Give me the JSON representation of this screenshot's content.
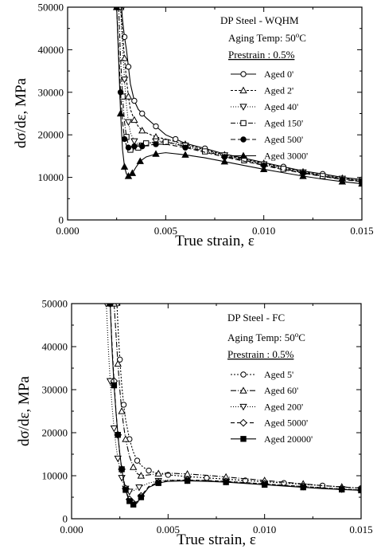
{
  "figure": {
    "background": "#ffffff",
    "ink": "#000000"
  },
  "chart_data": [
    {
      "type": "line",
      "title": "DP Steel - WQHM",
      "aging_temp_label": "Aging Temp: 50",
      "aging_temp_suffix": "C",
      "aging_temp_sup": "o",
      "prestrain_label": "Prestrain : 0.5%",
      "xlabel": "True strain, ε",
      "ylabel": "dσ/dε, MPa",
      "xlim": [
        0.0,
        0.015
      ],
      "ylim": [
        0,
        50000
      ],
      "x_ticks": [
        0.0,
        0.005,
        0.01,
        0.015
      ],
      "x_tick_labels": [
        "0.000",
        "0.005",
        "0.010",
        "0.015"
      ],
      "y_ticks": [
        0,
        10000,
        20000,
        30000,
        40000,
        50000
      ],
      "y_tick_labels": [
        "0",
        "10000",
        "20000",
        "30000",
        "40000",
        "50000"
      ],
      "grid": false,
      "legend_position": "top-right",
      "series": [
        {
          "name": "Aged 0'",
          "marker": "circle-open",
          "dash": "",
          "x": [
            0.00275,
            0.0028,
            0.0029,
            0.003,
            0.0031,
            0.0032,
            0.0034,
            0.0036,
            0.0038,
            0.004,
            0.0045,
            0.005,
            0.0055,
            0.006,
            0.007,
            0.008,
            0.009,
            0.01,
            0.011,
            0.012,
            0.013,
            0.014,
            0.015
          ],
          "y": [
            50000,
            47000,
            43000,
            40000,
            36000,
            32000,
            28000,
            26000,
            25000,
            24000,
            22000,
            20000,
            19000,
            18000,
            16800,
            15500,
            14500,
            13500,
            12500,
            11500,
            10800,
            10000,
            9500
          ]
        },
        {
          "name": "Aged 2'",
          "marker": "triangle-up-open",
          "dash": "3 2",
          "x": [
            0.0027,
            0.0028,
            0.0029,
            0.003,
            0.0031,
            0.0032,
            0.0034,
            0.0036,
            0.0038,
            0.004,
            0.0045,
            0.005,
            0.006,
            0.007,
            0.008,
            0.009,
            0.01,
            0.011,
            0.012,
            0.013,
            0.014,
            0.015
          ],
          "y": [
            50000,
            44000,
            38000,
            33000,
            29000,
            26000,
            23500,
            22000,
            21000,
            20500,
            19500,
            19000,
            17800,
            16500,
            15300,
            14300,
            13300,
            12300,
            11300,
            10500,
            9800,
            9200
          ]
        },
        {
          "name": "Aged 40'",
          "marker": "triangle-down-open",
          "dash": "1 2",
          "x": [
            0.0027,
            0.0028,
            0.0029,
            0.003,
            0.0031,
            0.0032,
            0.0034,
            0.0036,
            0.0038,
            0.004,
            0.0045,
            0.005,
            0.006,
            0.007,
            0.008,
            0.009,
            0.01,
            0.011,
            0.012,
            0.013,
            0.014,
            0.015
          ],
          "y": [
            50000,
            41000,
            33000,
            27000,
            23000,
            20500,
            18500,
            17800,
            17500,
            17800,
            18500,
            18500,
            17500,
            16300,
            15200,
            14100,
            13100,
            12100,
            11200,
            10400,
            9700,
            9100
          ]
        },
        {
          "name": "Aged 150'",
          "marker": "square-open",
          "dash": "6 2 1 2",
          "x": [
            0.0026,
            0.0027,
            0.0028,
            0.0029,
            0.003,
            0.0031,
            0.0032,
            0.0034,
            0.0036,
            0.0038,
            0.004,
            0.0045,
            0.005,
            0.006,
            0.007,
            0.008,
            0.009,
            0.01,
            0.011,
            0.012,
            0.013,
            0.014,
            0.015
          ],
          "y": [
            50000,
            38000,
            29000,
            23000,
            19500,
            17500,
            16500,
            16500,
            17000,
            17500,
            18000,
            18300,
            18300,
            17300,
            16100,
            15000,
            14000,
            13000,
            12000,
            11100,
            10300,
            9600,
            9000
          ]
        },
        {
          "name": "Aged 500'",
          "marker": "circle-filled",
          "dash": "6 3",
          "x": [
            0.0025,
            0.0026,
            0.0027,
            0.0028,
            0.0029,
            0.003,
            0.0031,
            0.0032,
            0.0034,
            0.0036,
            0.0038,
            0.004,
            0.0045,
            0.005,
            0.006,
            0.007,
            0.008,
            0.009,
            0.01,
            0.011,
            0.012,
            0.013,
            0.014,
            0.015
          ],
          "y": [
            50000,
            40000,
            30000,
            23000,
            19000,
            17500,
            17000,
            17200,
            17300,
            17300,
            17300,
            17500,
            17800,
            17800,
            17000,
            15900,
            14800,
            13800,
            12800,
            11800,
            11000,
            10200,
            9500,
            9000
          ]
        },
        {
          "name": "Aged 3000'",
          "marker": "triangle-up-filled",
          "dash": "",
          "x": [
            0.0025,
            0.0026,
            0.0027,
            0.0028,
            0.0029,
            0.003,
            0.0031,
            0.0032,
            0.0033,
            0.0035,
            0.0037,
            0.004,
            0.0045,
            0.005,
            0.006,
            0.007,
            0.008,
            0.009,
            0.01,
            0.011,
            0.012,
            0.013,
            0.014,
            0.015
          ],
          "y": [
            50000,
            38000,
            25000,
            16500,
            12500,
            10800,
            10300,
            10500,
            11000,
            12500,
            13800,
            14800,
            15500,
            15800,
            15300,
            14600,
            13700,
            12800,
            11900,
            11100,
            10300,
            9600,
            9000,
            8500
          ]
        }
      ]
    },
    {
      "type": "line",
      "title": "DP Steel - FC",
      "aging_temp_label": "Aging Temp: 50",
      "aging_temp_suffix": "C",
      "aging_temp_sup": "o",
      "prestrain_label": "Prestrain : 0.5%",
      "xlabel": "True strain, ε",
      "ylabel": "dσ/dε, MPa",
      "xlim": [
        0.0,
        0.015
      ],
      "ylim": [
        0,
        50000
      ],
      "x_ticks": [
        0.0,
        0.005,
        0.01,
        0.015
      ],
      "x_tick_labels": [
        "0.000",
        "0.005",
        "0.010",
        "0.015"
      ],
      "y_ticks": [
        0,
        10000,
        20000,
        30000,
        40000,
        50000
      ],
      "y_tick_labels": [
        "0",
        "10000",
        "20000",
        "30000",
        "40000",
        "50000"
      ],
      "grid": false,
      "legend_position": "top-right",
      "series": [
        {
          "name": "Aged 5'",
          "marker": "circle-open",
          "dash": "2 2",
          "x": [
            0.00235,
            0.0024,
            0.0025,
            0.0026,
            0.0027,
            0.0028,
            0.003,
            0.0032,
            0.0034,
            0.0037,
            0.004,
            0.0045,
            0.005,
            0.006,
            0.007,
            0.008,
            0.009,
            0.01,
            0.011,
            0.012,
            0.013,
            0.014,
            0.015
          ],
          "y": [
            50000,
            45000,
            37000,
            31000,
            26500,
            23000,
            18500,
            15500,
            13500,
            12000,
            11200,
            10500,
            10200,
            9800,
            9500,
            9200,
            8900,
            8600,
            8300,
            8000,
            7700,
            7400,
            7100
          ]
        },
        {
          "name": "Aged 60'",
          "marker": "triangle-up-open",
          "dash": "7 2 1 2",
          "x": [
            0.0022,
            0.0023,
            0.0024,
            0.0025,
            0.0026,
            0.0027,
            0.0028,
            0.003,
            0.0032,
            0.0034,
            0.0036,
            0.004,
            0.0045,
            0.005,
            0.006,
            0.007,
            0.008,
            0.009,
            0.01,
            0.011,
            0.012,
            0.013,
            0.014,
            0.015
          ],
          "y": [
            50000,
            43000,
            36000,
            30000,
            25000,
            21500,
            18500,
            14500,
            12000,
            10500,
            10000,
            10200,
            10500,
            10600,
            10400,
            10100,
            9700,
            9300,
            8900,
            8500,
            8100,
            7700,
            7400,
            7100
          ]
        },
        {
          "name": "Aged 200'",
          "marker": "triangle-down-open",
          "dash": "1 2",
          "x": [
            0.0018,
            0.0019,
            0.002,
            0.0021,
            0.0022,
            0.0023,
            0.0024,
            0.0025,
            0.0026,
            0.0027,
            0.0028,
            0.0029,
            0.003,
            0.0032,
            0.0035,
            0.004,
            0.0045,
            0.005,
            0.006,
            0.007,
            0.008,
            0.009,
            0.01,
            0.011,
            0.012,
            0.013,
            0.014,
            0.015
          ],
          "y": [
            50000,
            40000,
            32000,
            26000,
            21000,
            17000,
            14000,
            11500,
            9500,
            8000,
            7000,
            6500,
            6300,
            6500,
            7300,
            8300,
            8800,
            9000,
            9000,
            8900,
            8700,
            8400,
            8100,
            7800,
            7500,
            7200,
            6900,
            6700
          ]
        },
        {
          "name": "Aged 5000'",
          "marker": "diamond-open",
          "dash": "5 3",
          "x": [
            0.002,
            0.0021,
            0.0022,
            0.0023,
            0.0024,
            0.0025,
            0.0026,
            0.0027,
            0.0028,
            0.0029,
            0.003,
            0.0031,
            0.0032,
            0.0034,
            0.0036,
            0.004,
            0.0045,
            0.005,
            0.006,
            0.007,
            0.008,
            0.009,
            0.01,
            0.011,
            0.012,
            0.013,
            0.014,
            0.015
          ],
          "y": [
            50000,
            40000,
            32000,
            25000,
            19500,
            15000,
            11500,
            9000,
            7000,
            5500,
            4500,
            3900,
            3600,
            4000,
            5300,
            7500,
            8500,
            8900,
            9000,
            8900,
            8700,
            8400,
            8100,
            7800,
            7500,
            7200,
            6900,
            6700
          ]
        },
        {
          "name": "Aged 20000'",
          "marker": "square-filled",
          "dash": "",
          "x": [
            0.002,
            0.0021,
            0.0022,
            0.0023,
            0.0024,
            0.0025,
            0.0026,
            0.0027,
            0.0028,
            0.0029,
            0.003,
            0.0031,
            0.0032,
            0.0034,
            0.0036,
            0.004,
            0.0045,
            0.005,
            0.006,
            0.007,
            0.008,
            0.009,
            0.01,
            0.011,
            0.012,
            0.013,
            0.014,
            0.015
          ],
          "y": [
            50000,
            39000,
            31000,
            24800,
            19500,
            15000,
            11500,
            8800,
            6700,
            5200,
            4100,
            3500,
            3300,
            3700,
            5000,
            7300,
            8300,
            8700,
            8800,
            8700,
            8500,
            8200,
            7900,
            7600,
            7300,
            7000,
            6800,
            6600
          ]
        }
      ]
    }
  ]
}
